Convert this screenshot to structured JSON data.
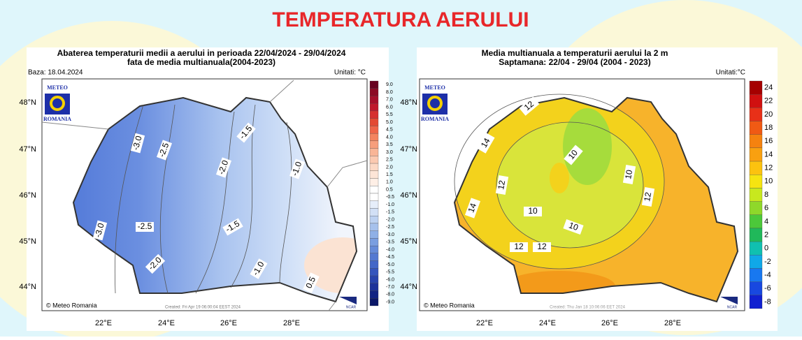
{
  "title": "TEMPERATURA AERULUI",
  "panels": [
    {
      "title_lines": [
        "Abaterea temperaturii medii a aerului in perioada 22/04/2024 - 29/04/2024",
        "fata de media multianuala(2004-2023)"
      ],
      "base": "Baza: 18.04.2024",
      "units": "Unitati: °C",
      "logo": {
        "top": "METEO",
        "bottom": "ROMANIA"
      },
      "copyright": "© Meteo Romania",
      "created": "Created: Fri Apr 19 06:00:04 EEST 2024",
      "ncar": "NCAR",
      "lat_labels": [
        "48°N",
        "47°N",
        "46°N",
        "45°N",
        "44°N"
      ],
      "lon_labels": [
        "22°E",
        "24°E",
        "26°E",
        "28°E"
      ],
      "colorbar": {
        "labels": [
          "9.0",
          "8.0",
          "7.0",
          "6.0",
          "5.5",
          "5.0",
          "4.5",
          "4.0",
          "3.5",
          "3.0",
          "2.5",
          "2.0",
          "1.5",
          "1.0",
          "0.5",
          "-0.5",
          "-1.0",
          "-1.5",
          "-2.0",
          "-2.5",
          "-3.0",
          "-3.5",
          "-4.0",
          "-4.5",
          "-5.0",
          "-5.5",
          "-6.0",
          "-7.0",
          "-8.0",
          "-9.0"
        ],
        "colors": [
          "#67001f",
          "#8b0a24",
          "#a50f2a",
          "#c0182c",
          "#d6302f",
          "#e34a33",
          "#ef6548",
          "#f4845f",
          "#f79e7c",
          "#f9b596",
          "#fbc9b0",
          "#fcd9c5",
          "#fde5d7",
          "#feefe6",
          "#ffffff",
          "#ffffff",
          "#e6eefa",
          "#d2e0f6",
          "#bcd1f1",
          "#a6c1ec",
          "#8fb0e6",
          "#7a9ee0",
          "#668bd9",
          "#5479d1",
          "#4367c8",
          "#3455bd",
          "#2743ad",
          "#1c329a",
          "#122383",
          "#0b1768"
        ]
      },
      "contour_labels": [
        "-3.0",
        "-2.5",
        "-2.0",
        "-1.5",
        "-1.0",
        "-3.0",
        "-2.5",
        "-1.5",
        "-2.0",
        "-1.0",
        "0.5"
      ]
    },
    {
      "title_lines": [
        "Media multianuala a temperaturii aerului la 2 m",
        "Saptamana: 22/04 - 29/04 (2004 - 2023)"
      ],
      "units": "Unitati:°C",
      "logo": {
        "top": "METEO",
        "bottom": "ROMANIA"
      },
      "copyright": "© Meteo Romania",
      "created": "Created: Thu Jan 18 10:06:06 EET 2024",
      "ncar": "NCAR",
      "lat_labels": [
        "48°N",
        "47°N",
        "46°N",
        "45°N",
        "44°N"
      ],
      "lon_labels": [
        "22°E",
        "24°E",
        "26°E",
        "28°E"
      ],
      "colorbar": {
        "labels": [
          "24",
          "22",
          "20",
          "18",
          "16",
          "14",
          "12",
          "10",
          "8",
          "6",
          "4",
          "2",
          "0",
          "-2",
          "-4",
          "-6",
          "-8"
        ],
        "colors": [
          "#a50000",
          "#d01010",
          "#e83018",
          "#f05a14",
          "#f5820f",
          "#f9a010",
          "#fcc20f",
          "#f6e411",
          "#c8e81e",
          "#8fd82a",
          "#4cc83a",
          "#20b85a",
          "#10c0b0",
          "#10a8e8",
          "#1878f0",
          "#1848e0",
          "#1020d0"
        ]
      },
      "contour_labels": [
        "12",
        "14",
        "14",
        "12",
        "10",
        "10",
        "10",
        "10",
        "12",
        "12",
        "12"
      ]
    }
  ]
}
